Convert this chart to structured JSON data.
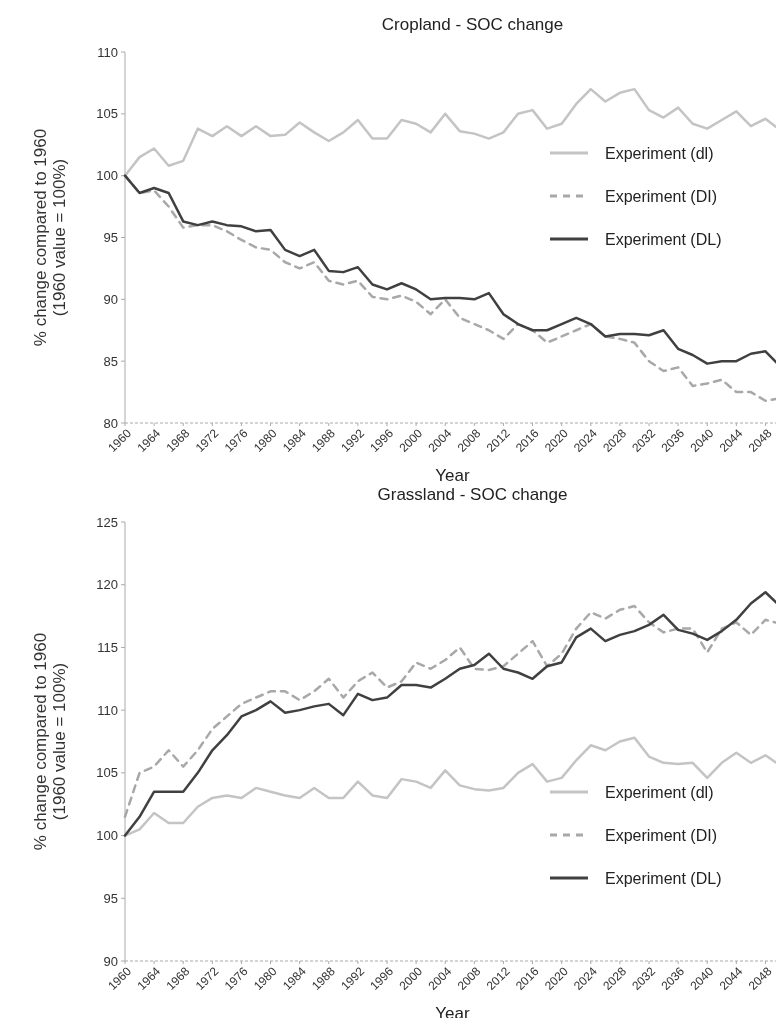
{
  "chart_data": [
    {
      "type": "line",
      "title": "Cropland - SOC change",
      "xlabel": "Year",
      "ylabel": "% change compared to 1960\n(1960 value = 100%)",
      "x": [
        1960,
        1962,
        1964,
        1966,
        1968,
        1970,
        1972,
        1974,
        1976,
        1978,
        1980,
        1982,
        1984,
        1986,
        1988,
        1990,
        1992,
        1994,
        1996,
        1998,
        2000,
        2002,
        2004,
        2006,
        2008,
        2010,
        2012,
        2014,
        2016,
        2018,
        2020,
        2022,
        2024,
        2026,
        2028,
        2030,
        2032,
        2034,
        2036,
        2038,
        2040,
        2042,
        2044,
        2046,
        2048,
        2050
      ],
      "xlim": [
        1960,
        2050
      ],
      "xticks": [
        1960,
        1964,
        1968,
        1972,
        1976,
        1980,
        1984,
        1988,
        1992,
        1996,
        2000,
        2004,
        2008,
        2012,
        2016,
        2020,
        2024,
        2028,
        2032,
        2036,
        2040,
        2044,
        2048
      ],
      "ylim": [
        80,
        110
      ],
      "yticks": [
        80,
        85,
        90,
        95,
        100,
        105,
        110
      ],
      "grid": false,
      "legend": "right",
      "series": [
        {
          "name": "Experiment (dl)",
          "color": "#c4c4c4",
          "line_style": "solid",
          "values": [
            100,
            101.5,
            102.2,
            100.8,
            101.2,
            103.8,
            103.2,
            104,
            103.2,
            104,
            103.2,
            103.3,
            104.3,
            103.5,
            102.8,
            103.5,
            104.5,
            103,
            103,
            104.5,
            104.2,
            103.5,
            105,
            103.6,
            103.4,
            103,
            103.5,
            105,
            105.3,
            103.8,
            104.2,
            105.8,
            107,
            106,
            106.7,
            107,
            105.3,
            104.7,
            105.5,
            104.2,
            103.8,
            104.5,
            105.2,
            104,
            104.6,
            103.7
          ]
        },
        {
          "name": "Experiment (DI)",
          "color": "#a8a8a8",
          "line_style": "dashed",
          "values": [
            100,
            98.6,
            98.8,
            97.5,
            95.8,
            96,
            96,
            95.5,
            94.8,
            94.2,
            94,
            93,
            92.5,
            93,
            91.5,
            91.2,
            91.5,
            90.2,
            90,
            90.3,
            89.8,
            88.8,
            90,
            88.5,
            88,
            87.5,
            86.8,
            88,
            87.5,
            86.5,
            87,
            87.5,
            88,
            87,
            86.8,
            86.5,
            85,
            84.2,
            84.5,
            83,
            83.2,
            83.5,
            82.5,
            82.5,
            81.8,
            82
          ]
        },
        {
          "name": "Experiment (DL)",
          "color": "#404040",
          "line_style": "solid",
          "values": [
            100,
            98.6,
            99,
            98.6,
            96.3,
            96,
            96.3,
            96,
            95.9,
            95.5,
            95.6,
            94,
            93.5,
            94,
            92.3,
            92.2,
            92.6,
            91.2,
            90.8,
            91.3,
            90.8,
            90,
            90.1,
            90.1,
            90,
            90.5,
            88.8,
            88,
            87.5,
            87.5,
            88,
            88.5,
            88,
            87,
            87.2,
            87.2,
            87.1,
            87.5,
            86,
            85.5,
            84.8,
            85,
            85,
            85.6,
            85.8,
            84.6
          ]
        }
      ]
    },
    {
      "type": "line",
      "title": "Grassland - SOC change",
      "xlabel": "Year",
      "ylabel": "% change compared to 1960\n(1960 value = 100%)",
      "x": [
        1960,
        1962,
        1964,
        1966,
        1968,
        1970,
        1972,
        1974,
        1976,
        1978,
        1980,
        1982,
        1984,
        1986,
        1988,
        1990,
        1992,
        1994,
        1996,
        1998,
        2000,
        2002,
        2004,
        2006,
        2008,
        2010,
        2012,
        2014,
        2016,
        2018,
        2020,
        2022,
        2024,
        2026,
        2028,
        2030,
        2032,
        2034,
        2036,
        2038,
        2040,
        2042,
        2044,
        2046,
        2048,
        2050
      ],
      "xlim": [
        1960,
        2050
      ],
      "xticks": [
        1960,
        1964,
        1968,
        1972,
        1976,
        1980,
        1984,
        1988,
        1992,
        1996,
        2000,
        2004,
        2008,
        2012,
        2016,
        2020,
        2024,
        2028,
        2032,
        2036,
        2040,
        2044,
        2048
      ],
      "ylim": [
        90,
        125
      ],
      "yticks": [
        90,
        95,
        100,
        105,
        110,
        115,
        120,
        125
      ],
      "grid": false,
      "legend": "bottom right",
      "series": [
        {
          "name": "Experiment (dl)",
          "color": "#c4c4c4",
          "line_style": "solid",
          "values": [
            100,
            100.5,
            101.8,
            101,
            101,
            102.3,
            103,
            103.2,
            103,
            103.8,
            103.5,
            103.2,
            103,
            103.8,
            103,
            103,
            104.3,
            103.2,
            103,
            104.5,
            104.3,
            103.8,
            105.2,
            104,
            103.7,
            103.6,
            103.8,
            105,
            105.7,
            104.3,
            104.6,
            106,
            107.2,
            106.8,
            107.5,
            107.8,
            106.3,
            105.8,
            105.7,
            105.8,
            104.6,
            105.8,
            106.6,
            105.8,
            106.4,
            105.6
          ]
        },
        {
          "name": "Experiment (DI)",
          "color": "#a8a8a8",
          "line_style": "dashed",
          "values": [
            101.5,
            105,
            105.5,
            106.8,
            105.5,
            106.8,
            108.5,
            109.5,
            110.5,
            111,
            111.5,
            111.5,
            110.8,
            111.5,
            112.5,
            111,
            112.3,
            113,
            111.8,
            112.3,
            113.8,
            113.3,
            114,
            115,
            113.3,
            113.2,
            113.5,
            114.5,
            115.5,
            113.5,
            114.5,
            116.5,
            117.8,
            117.3,
            118,
            118.3,
            117,
            116.2,
            116.5,
            116.5,
            114.6,
            116.5,
            117,
            116,
            117.2,
            116.9
          ]
        },
        {
          "name": "Experiment (DL)",
          "color": "#404040",
          "line_style": "solid",
          "values": [
            100,
            101.5,
            103.5,
            103.5,
            103.5,
            105,
            106.8,
            108,
            109.5,
            110,
            110.7,
            109.8,
            110,
            110.3,
            110.5,
            109.6,
            111.3,
            110.8,
            111,
            112,
            112,
            111.8,
            112.5,
            113.3,
            113.6,
            114.5,
            113.3,
            113,
            112.5,
            113.5,
            113.8,
            115.8,
            116.5,
            115.5,
            116,
            116.3,
            116.8,
            117.6,
            116.4,
            116.1,
            115.6,
            116.3,
            117.2,
            118.5,
            119.4,
            118.3
          ]
        }
      ]
    }
  ]
}
